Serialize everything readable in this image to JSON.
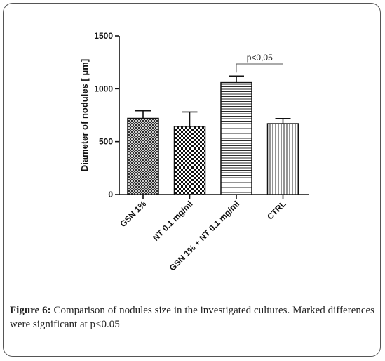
{
  "chart_data": {
    "type": "bar",
    "categories": [
      "GSN 1%",
      "NT 0.1 mg/ml",
      "GSN 1% + NT 0.1 mg/ml",
      "CTRL"
    ],
    "values": [
      720,
      645,
      1058,
      670
    ],
    "errors": [
      72,
      135,
      62,
      48
    ],
    "patterns": [
      "crosshatch-fine",
      "checker",
      "horizontal-lines",
      "vertical-lines"
    ],
    "ylabel": "Diameter of nodules [ μm]",
    "ylim": [
      0,
      1500
    ],
    "yticks": [
      0,
      500,
      1000,
      1500
    ],
    "grid": false,
    "annotation": {
      "text": "p<0,05",
      "from_category": "GSN 1% + NT 0.1 mg/ml",
      "to_category": "CTRL"
    }
  },
  "caption": {
    "label": "Figure 6:",
    "text": " Comparison of nodules size in the investigated cultures. Marked differences were significant at p<0.05"
  }
}
